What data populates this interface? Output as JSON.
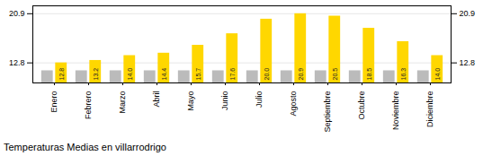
{
  "chart_data": {
    "type": "bar",
    "title": "Temperaturas Medias en villarrodrigo",
    "categories": [
      "Enero",
      "Febrero",
      "Marzo",
      "Abril",
      "Mayo",
      "Junio",
      "Julio",
      "Agosto",
      "Septiembre",
      "Octubre",
      "Noviembre",
      "Diciembre"
    ],
    "series": [
      {
        "color": "#BBBBBB",
        "values": [
          11.5,
          11.5,
          11.5,
          11.5,
          11.5,
          11.5,
          11.5,
          11.5,
          11.5,
          11.5,
          11.5,
          11.5
        ]
      },
      {
        "color": "#FFD700",
        "values": [
          12.8,
          13.2,
          14.0,
          14.4,
          15.7,
          17.6,
          20.0,
          20.9,
          20.5,
          18.5,
          16.3,
          14.0
        ],
        "data_labels": true,
        "value_labels": [
          "12.8",
          "13.2",
          "14.0",
          "14.4",
          "15.7",
          "17.6",
          "20.0",
          "20.9",
          "20.5",
          "18.5",
          "16.3",
          "14.0"
        ]
      }
    ],
    "ylim": [
      9.5,
      22.2
    ],
    "yticks": [
      12.8,
      20.9
    ],
    "grid": true
  }
}
